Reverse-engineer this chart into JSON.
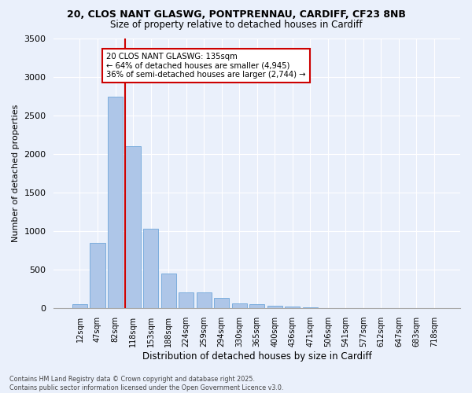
{
  "title_line1": "20, CLOS NANT GLASWG, PONTPRENNAU, CARDIFF, CF23 8NB",
  "title_line2": "Size of property relative to detached houses in Cardiff",
  "xlabel": "Distribution of detached houses by size in Cardiff",
  "ylabel": "Number of detached properties",
  "bar_values": [
    55,
    850,
    2750,
    2100,
    1030,
    450,
    210,
    210,
    130,
    60,
    50,
    35,
    25,
    10,
    5,
    3,
    2,
    1,
    1,
    0,
    0
  ],
  "bar_labels": [
    "12sqm",
    "47sqm",
    "82sqm",
    "118sqm",
    "153sqm",
    "188sqm",
    "224sqm",
    "259sqm",
    "294sqm",
    "330sqm",
    "365sqm",
    "400sqm",
    "436sqm",
    "471sqm",
    "506sqm",
    "541sqm",
    "577sqm",
    "612sqm",
    "647sqm",
    "683sqm",
    "718sqm"
  ],
  "bar_color": "#aec6e8",
  "bar_edgecolor": "#5b9bd5",
  "background_color": "#eaf0fb",
  "grid_color": "#ffffff",
  "vline_index": 3,
  "vline_color": "#cc0000",
  "annotation_line1": "20 CLOS NANT GLASWG: 135sqm",
  "annotation_line2": "← 64% of detached houses are smaller (4,945)",
  "annotation_line3": "36% of semi-detached houses are larger (2,744) →",
  "annotation_box_edgecolor": "#cc0000",
  "ylim": [
    0,
    3500
  ],
  "yticks": [
    0,
    500,
    1000,
    1500,
    2000,
    2500,
    3000,
    3500
  ],
  "footnote": "Contains HM Land Registry data © Crown copyright and database right 2025.\nContains public sector information licensed under the Open Government Licence v3.0."
}
